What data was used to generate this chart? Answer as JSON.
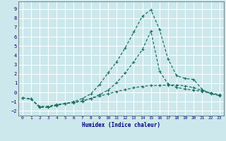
{
  "xlabel": "Humidex (Indice chaleur)",
  "xlim": [
    -0.5,
    23.5
  ],
  "ylim": [
    -2.5,
    9.8
  ],
  "xticks": [
    0,
    1,
    2,
    3,
    4,
    5,
    6,
    7,
    8,
    9,
    10,
    11,
    12,
    13,
    14,
    15,
    16,
    17,
    18,
    19,
    20,
    21,
    22,
    23
  ],
  "yticks": [
    -2,
    -1,
    0,
    1,
    2,
    3,
    4,
    5,
    6,
    7,
    8,
    9
  ],
  "bg_color": "#cce8ec",
  "grid_color": "#ffffff",
  "line_color": "#1a7060",
  "line1_x": [
    0,
    1,
    2,
    3,
    4,
    5,
    6,
    7,
    8,
    9,
    10,
    11,
    12,
    13,
    14,
    15,
    16,
    17,
    18,
    19,
    20,
    21,
    22,
    23
  ],
  "line1_y": [
    -0.6,
    -0.7,
    -1.5,
    -1.5,
    -1.3,
    -1.2,
    -1.05,
    -0.9,
    -0.65,
    -0.4,
    -0.15,
    0.1,
    0.3,
    0.5,
    0.65,
    0.75,
    0.75,
    0.8,
    0.8,
    0.7,
    0.5,
    0.2,
    -0.05,
    -0.25
  ],
  "line2_x": [
    0,
    1,
    2,
    3,
    4,
    5,
    6,
    7,
    8,
    9,
    10,
    11,
    12,
    13,
    14,
    15,
    16,
    17,
    18,
    19,
    20,
    21,
    22,
    23
  ],
  "line2_y": [
    -0.6,
    -0.7,
    -1.6,
    -1.6,
    -1.35,
    -1.2,
    -1.0,
    -0.65,
    -0.15,
    0.85,
    2.1,
    3.3,
    4.8,
    6.5,
    8.2,
    8.9,
    6.8,
    3.6,
    1.8,
    1.5,
    1.4,
    0.3,
    -0.15,
    -0.35
  ],
  "line3_x": [
    0,
    1,
    2,
    3,
    4,
    5,
    6,
    7,
    8,
    9,
    10,
    11,
    12,
    13,
    14,
    15,
    16,
    17,
    18,
    19,
    20,
    21,
    22,
    23
  ],
  "line3_y": [
    -0.6,
    -0.7,
    -1.6,
    -1.6,
    -1.4,
    -1.2,
    -1.1,
    -0.95,
    -0.65,
    -0.25,
    0.25,
    1.05,
    2.1,
    3.3,
    4.6,
    6.6,
    2.3,
    0.9,
    0.55,
    0.35,
    0.25,
    0.1,
    -0.1,
    -0.3
  ]
}
